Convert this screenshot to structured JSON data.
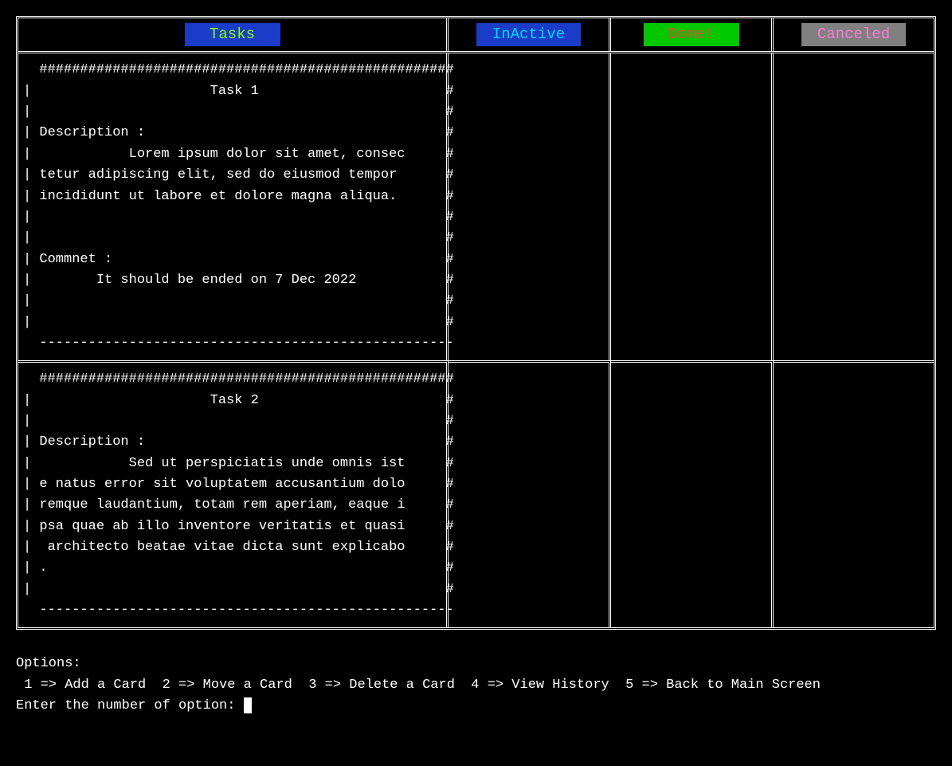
{
  "colors": {
    "bg": "#000000",
    "fg": "#ffffff",
    "border": "#ffffff",
    "tasks_tab_bg": "#1a3cc8",
    "tasks_tab_fg": "#8aff00",
    "inactive_tab_bg": "#1a3cc8",
    "inactive_tab_fg": "#00d8ff",
    "done_tab_bg": "#00c800",
    "done_tab_fg": "#ff3b3b",
    "canceled_tab_bg": "#808080",
    "canceled_tab_fg": "#ff7bd4"
  },
  "columns": {
    "tasks": "Tasks",
    "inactive": "InActive",
    "done": "Done!",
    "canceled": "Canceled"
  },
  "cards": [
    {
      "top": "  ###################################################",
      "lines": [
        "|                      Task 1                       #",
        "|                                                   #",
        "| Description :                                     #",
        "|            Lorem ipsum dolor sit amet, consec     #",
        "| tetur adipiscing elit, sed do eiusmod tempor      #",
        "| incididunt ut labore et dolore magna aliqua.      #",
        "|                                                   #",
        "|                                                   #",
        "| Commnet :                                         #",
        "|        It should be ended on 7 Dec 2022           #",
        "|                                                   #",
        "|                                                   #"
      ],
      "bottom": "  ---------------------------------------------------"
    },
    {
      "top": "  ###################################################",
      "lines": [
        "|                      Task 2                       #",
        "|                                                   #",
        "| Description :                                     #",
        "|            Sed ut perspiciatis unde omnis ist     #",
        "| e natus error sit voluptatem accusantium dolo     #",
        "| remque laudantium, totam rem aperiam, eaque i     #",
        "| psa quae ab illo inventore veritatis et quasi     #",
        "|  architecto beatae vitae dicta sunt explicabo     #",
        "| .                                                 #",
        "|                                                   #"
      ],
      "bottom": "  ---------------------------------------------------"
    }
  ],
  "options": {
    "title": "Options:",
    "items": [
      {
        "key": "1",
        "label": "Add a Card"
      },
      {
        "key": "2",
        "label": "Move a Card"
      },
      {
        "key": "3",
        "label": "Delete a Card"
      },
      {
        "key": "4",
        "label": "View History"
      },
      {
        "key": "5",
        "label": "Back to Main Screen"
      }
    ],
    "prompt": "Enter the number of option: "
  }
}
